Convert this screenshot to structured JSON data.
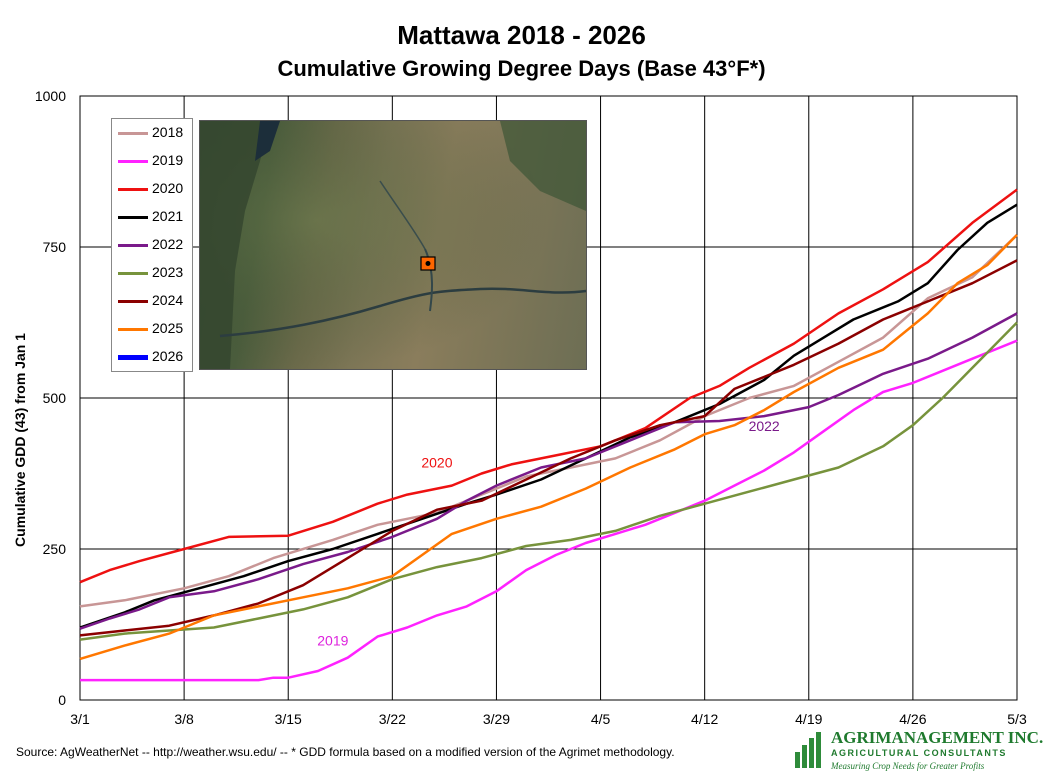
{
  "title": "Mattawa 2018 - 2026",
  "subtitle": "Cumulative Growing Degree Days (Base 43°F*)",
  "source_note": "Source:  AgWeatherNet -- http://weather.wsu.edu/ --  * GDD formula based on a modified version of the Agrimet methodology.",
  "logo": {
    "name": "AGRIMANAGEMENT INC.",
    "registered": "®",
    "subtitle": "AGRICULTURAL CONSULTANTS",
    "tagline": "Measuring Crop Needs for Greater Profits"
  },
  "chart_data": {
    "type": "line",
    "title": "Mattawa 2018 - 2026",
    "subtitle": "Cumulative Growing Degree Days (Base 43°F*)",
    "ylabel": "Cumulative GDD (43) from Jan 1",
    "xlabel": "",
    "ylim": [
      0,
      1000
    ],
    "xlim": [
      0,
      63
    ],
    "yticks": [
      0,
      250,
      500,
      750,
      1000
    ],
    "xticks": [
      {
        "x": 0,
        "label": "3/1"
      },
      {
        "x": 7,
        "label": "3/8"
      },
      {
        "x": 14,
        "label": "3/15"
      },
      {
        "x": 21,
        "label": "3/22"
      },
      {
        "x": 28,
        "label": "3/29"
      },
      {
        "x": 35,
        "label": "4/5"
      },
      {
        "x": 42,
        "label": "4/12"
      },
      {
        "x": 49,
        "label": "4/19"
      },
      {
        "x": 56,
        "label": "4/26"
      },
      {
        "x": 63,
        "label": "5/3"
      }
    ],
    "grid": true,
    "legend_position": "top-left",
    "annotations": [
      {
        "text": "2020",
        "x": 24,
        "y": 385,
        "color": "#ee1111"
      },
      {
        "text": "2019",
        "x": 17,
        "y": 90,
        "color": "#dd22dd"
      },
      {
        "text": "2022",
        "x": 46,
        "y": 445,
        "color": "#7a1a8a"
      }
    ],
    "series": [
      {
        "name": "2018",
        "color": "#c89696",
        "width": 2.5,
        "points": [
          [
            0,
            155
          ],
          [
            3,
            165
          ],
          [
            7,
            185
          ],
          [
            10,
            205
          ],
          [
            13,
            235
          ],
          [
            17,
            265
          ],
          [
            20,
            290
          ],
          [
            24,
            310
          ],
          [
            27,
            340
          ],
          [
            30,
            370
          ],
          [
            33,
            385
          ],
          [
            36,
            400
          ],
          [
            39,
            430
          ],
          [
            42,
            470
          ],
          [
            45,
            500
          ],
          [
            48,
            520
          ],
          [
            51,
            560
          ],
          [
            54,
            600
          ],
          [
            57,
            665
          ],
          [
            60,
            700
          ],
          [
            63,
            770
          ]
        ]
      },
      {
        "name": "2019",
        "color": "#ff22ff",
        "width": 2.5,
        "points": [
          [
            0,
            33
          ],
          [
            5,
            33
          ],
          [
            10,
            33
          ],
          [
            12,
            33
          ],
          [
            13,
            37
          ],
          [
            14,
            37
          ],
          [
            16,
            48
          ],
          [
            18,
            70
          ],
          [
            20,
            105
          ],
          [
            22,
            120
          ],
          [
            24,
            140
          ],
          [
            26,
            155
          ],
          [
            28,
            180
          ],
          [
            30,
            215
          ],
          [
            32,
            240
          ],
          [
            34,
            260
          ],
          [
            36,
            275
          ],
          [
            38,
            290
          ],
          [
            40,
            310
          ],
          [
            42,
            330
          ],
          [
            44,
            355
          ],
          [
            46,
            380
          ],
          [
            48,
            410
          ],
          [
            50,
            445
          ],
          [
            52,
            480
          ],
          [
            54,
            510
          ],
          [
            56,
            525
          ],
          [
            58,
            545
          ],
          [
            60,
            565
          ],
          [
            63,
            595
          ]
        ]
      },
      {
        "name": "2020",
        "color": "#ee1111",
        "width": 2.5,
        "points": [
          [
            0,
            195
          ],
          [
            2,
            215
          ],
          [
            4,
            230
          ],
          [
            7,
            250
          ],
          [
            10,
            270
          ],
          [
            14,
            272
          ],
          [
            17,
            295
          ],
          [
            20,
            325
          ],
          [
            22,
            340
          ],
          [
            25,
            355
          ],
          [
            27,
            375
          ],
          [
            29,
            390
          ],
          [
            32,
            405
          ],
          [
            35,
            420
          ],
          [
            38,
            450
          ],
          [
            41,
            500
          ],
          [
            43,
            520
          ],
          [
            45,
            550
          ],
          [
            48,
            590
          ],
          [
            51,
            640
          ],
          [
            54,
            680
          ],
          [
            57,
            725
          ],
          [
            60,
            790
          ],
          [
            63,
            845
          ]
        ]
      },
      {
        "name": "2021",
        "color": "#000000",
        "width": 2.5,
        "points": [
          [
            0,
            120
          ],
          [
            3,
            145
          ],
          [
            5,
            165
          ],
          [
            8,
            185
          ],
          [
            11,
            205
          ],
          [
            14,
            230
          ],
          [
            17,
            250
          ],
          [
            20,
            275
          ],
          [
            23,
            300
          ],
          [
            26,
            325
          ],
          [
            28,
            340
          ],
          [
            31,
            365
          ],
          [
            34,
            400
          ],
          [
            37,
            435
          ],
          [
            40,
            460
          ],
          [
            43,
            490
          ],
          [
            46,
            530
          ],
          [
            48,
            570
          ],
          [
            50,
            600
          ],
          [
            52,
            630
          ],
          [
            55,
            660
          ],
          [
            57,
            690
          ],
          [
            59,
            745
          ],
          [
            61,
            790
          ],
          [
            63,
            820
          ]
        ]
      },
      {
        "name": "2022",
        "color": "#7a1a8a",
        "width": 2.5,
        "points": [
          [
            0,
            118
          ],
          [
            2,
            135
          ],
          [
            4,
            150
          ],
          [
            6,
            170
          ],
          [
            9,
            180
          ],
          [
            12,
            200
          ],
          [
            15,
            225
          ],
          [
            18,
            245
          ],
          [
            21,
            270
          ],
          [
            24,
            300
          ],
          [
            26,
            330
          ],
          [
            28,
            355
          ],
          [
            31,
            385
          ],
          [
            34,
            400
          ],
          [
            37,
            430
          ],
          [
            40,
            460
          ],
          [
            43,
            462
          ],
          [
            46,
            470
          ],
          [
            49,
            485
          ],
          [
            51,
            505
          ],
          [
            54,
            540
          ],
          [
            57,
            565
          ],
          [
            60,
            600
          ],
          [
            63,
            640
          ]
        ]
      },
      {
        "name": "2023",
        "color": "#77933c",
        "width": 2.5,
        "points": [
          [
            0,
            100
          ],
          [
            3,
            110
          ],
          [
            6,
            115
          ],
          [
            9,
            120
          ],
          [
            12,
            135
          ],
          [
            15,
            150
          ],
          [
            18,
            170
          ],
          [
            21,
            200
          ],
          [
            24,
            220
          ],
          [
            27,
            235
          ],
          [
            30,
            255
          ],
          [
            33,
            265
          ],
          [
            36,
            280
          ],
          [
            39,
            305
          ],
          [
            42,
            325
          ],
          [
            45,
            345
          ],
          [
            48,
            365
          ],
          [
            51,
            385
          ],
          [
            54,
            420
          ],
          [
            56,
            455
          ],
          [
            58,
            500
          ],
          [
            60,
            550
          ],
          [
            63,
            625
          ]
        ]
      },
      {
        "name": "2024",
        "color": "#8b0000",
        "width": 2.5,
        "points": [
          [
            0,
            107
          ],
          [
            3,
            115
          ],
          [
            6,
            123
          ],
          [
            9,
            140
          ],
          [
            12,
            160
          ],
          [
            15,
            190
          ],
          [
            18,
            235
          ],
          [
            21,
            280
          ],
          [
            24,
            315
          ],
          [
            27,
            330
          ],
          [
            30,
            365
          ],
          [
            33,
            400
          ],
          [
            36,
            430
          ],
          [
            39,
            455
          ],
          [
            42,
            470
          ],
          [
            44,
            515
          ],
          [
            46,
            535
          ],
          [
            48,
            555
          ],
          [
            51,
            590
          ],
          [
            54,
            630
          ],
          [
            57,
            660
          ],
          [
            60,
            690
          ],
          [
            63,
            728
          ]
        ]
      },
      {
        "name": "2025",
        "color": "#ff7700",
        "width": 2.5,
        "points": [
          [
            0,
            68
          ],
          [
            3,
            90
          ],
          [
            6,
            110
          ],
          [
            9,
            140
          ],
          [
            12,
            155
          ],
          [
            15,
            170
          ],
          [
            18,
            185
          ],
          [
            21,
            205
          ],
          [
            23,
            240
          ],
          [
            25,
            275
          ],
          [
            28,
            300
          ],
          [
            31,
            320
          ],
          [
            34,
            350
          ],
          [
            37,
            385
          ],
          [
            40,
            415
          ],
          [
            42,
            440
          ],
          [
            44,
            455
          ],
          [
            46,
            480
          ],
          [
            48,
            510
          ],
          [
            51,
            550
          ],
          [
            54,
            580
          ],
          [
            57,
            640
          ],
          [
            59,
            690
          ],
          [
            61,
            720
          ],
          [
            63,
            770
          ]
        ]
      },
      {
        "name": "2026",
        "color": "#0000ff",
        "width": 5,
        "points": []
      }
    ]
  }
}
